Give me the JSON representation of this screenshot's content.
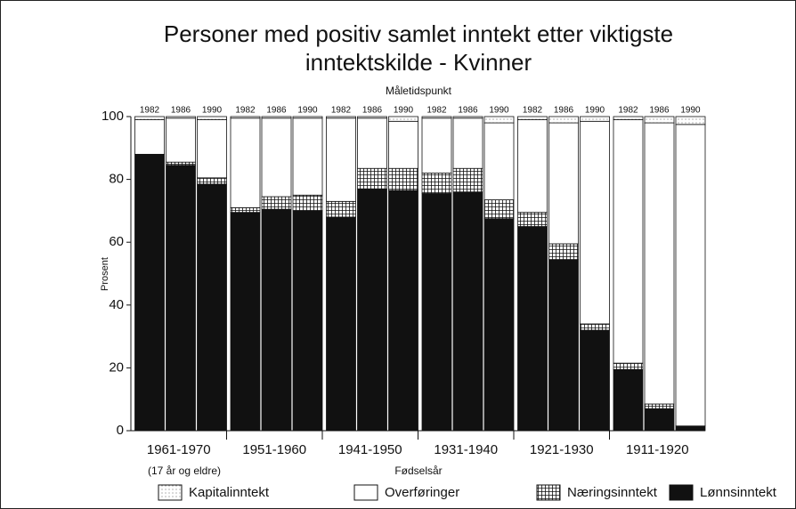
{
  "chart_data": {
    "type": "stacked-bar",
    "title": [
      "Personer med positiv samlet inntekt etter viktigste",
      "inntektskilde - Kvinner"
    ],
    "top_label": "Måletidspunkt",
    "xlabel": "Fødselsår",
    "ylabel": "Prosent",
    "annotation": "(17 år og eldre)",
    "groups": [
      "1961-1970",
      "1951-1960",
      "1941-1950",
      "1931-1940",
      "1921-1930",
      "1911-1920"
    ],
    "years": [
      "1982",
      "1986",
      "1990"
    ],
    "ylim": [
      0,
      100
    ],
    "yticks": [
      0,
      20,
      40,
      60,
      80,
      100
    ],
    "series": [
      {
        "name": "Lønnsinntekt",
        "color": "#111111",
        "pattern": "solid",
        "values": [
          88,
          84.5,
          78.5,
          69.5,
          70.5,
          70,
          68,
          77,
          76.5,
          75.5,
          76,
          67.5,
          65,
          54.5,
          32,
          19.5,
          7,
          1.5
        ]
      },
      {
        "name": "Næringsinntekt",
        "color": "#ffffff",
        "pattern": "grid",
        "values": [
          0,
          1,
          2,
          1.5,
          4,
          5,
          5,
          6.5,
          7,
          6.5,
          7.5,
          6,
          4.5,
          5,
          2,
          2,
          1.5,
          0
        ]
      },
      {
        "name": "Overføringer",
        "color": "#ffffff",
        "pattern": "none",
        "values": [
          11,
          14,
          18.5,
          28.5,
          25,
          24.5,
          26.5,
          16,
          15,
          17.5,
          16,
          24.5,
          29.5,
          38.5,
          64.5,
          77.5,
          89.5,
          96
        ]
      },
      {
        "name": "Kapitalinntekt",
        "color": "#ffffff",
        "pattern": "dots",
        "values": [
          1,
          0.5,
          1,
          0.5,
          0.5,
          0.5,
          0.5,
          0.5,
          1.5,
          0.5,
          0.5,
          2,
          1,
          2,
          1.5,
          1,
          2,
          2.5
        ]
      }
    ]
  }
}
